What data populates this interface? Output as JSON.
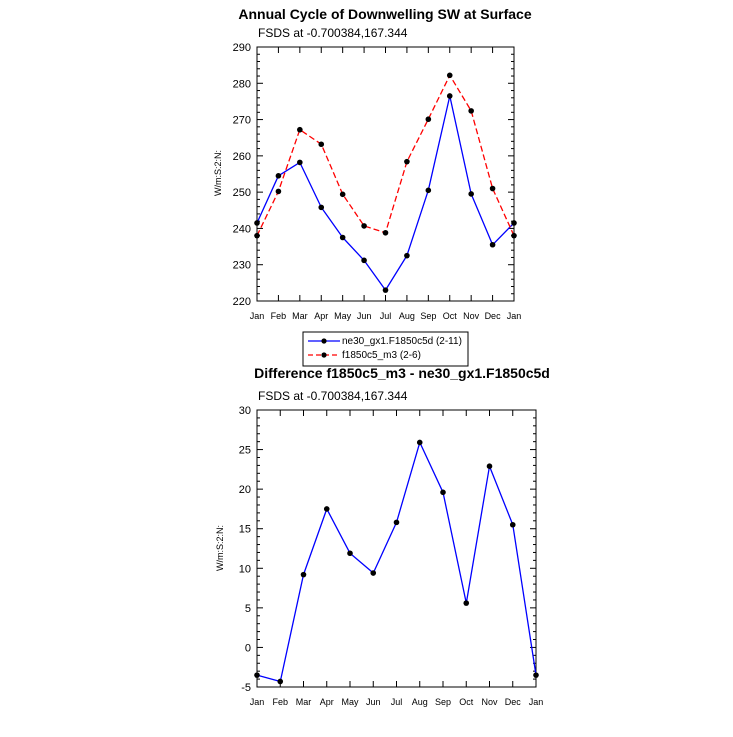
{
  "chart_data": [
    {
      "type": "line",
      "title": "Annual Cycle of Downwelling SW at Surface",
      "subtitle": "FSDS at -0.700384,167.344",
      "xlabel": "",
      "ylabel": "W/m:S:2:N:",
      "categories": [
        "Jan",
        "Feb",
        "Mar",
        "Apr",
        "May",
        "Jun",
        "Jul",
        "Aug",
        "Sep",
        "Oct",
        "Nov",
        "Dec",
        "Jan"
      ],
      "ylim": [
        220,
        290
      ],
      "yticks": [
        220,
        230,
        240,
        250,
        260,
        270,
        280,
        290
      ],
      "legend_position": "below",
      "series": [
        {
          "name": "ne30_gx1.F1850c5d (2-11)",
          "color": "#0000ff",
          "dash": "solid",
          "values": [
            241.5,
            254.5,
            258.2,
            245.8,
            237.5,
            231.2,
            223.0,
            232.5,
            250.5,
            276.5,
            249.5,
            235.5,
            241.5
          ]
        },
        {
          "name": "f1850c5_m3 (2-6)",
          "color": "#ff0000",
          "dash": "dashed",
          "values": [
            238.0,
            250.2,
            267.2,
            263.2,
            249.4,
            240.7,
            238.8,
            258.4,
            270.1,
            282.2,
            272.4,
            251.0,
            238.0
          ]
        }
      ]
    },
    {
      "type": "line",
      "title": "Difference f1850c5_m3 - ne30_gx1.F1850c5d",
      "subtitle": "FSDS at -0.700384,167.344",
      "xlabel": "",
      "ylabel": "W/m:S:2:N:",
      "categories": [
        "Jan",
        "Feb",
        "Mar",
        "Apr",
        "May",
        "Jun",
        "Jul",
        "Aug",
        "Sep",
        "Oct",
        "Nov",
        "Dec",
        "Jan"
      ],
      "ylim": [
        -5,
        30
      ],
      "yticks": [
        -5,
        0,
        5,
        10,
        15,
        20,
        25,
        30
      ],
      "series": [
        {
          "color": "#0000ff",
          "dash": "solid",
          "values": [
            -3.5,
            -4.3,
            9.2,
            17.5,
            11.9,
            9.4,
            15.8,
            25.9,
            19.6,
            5.6,
            22.9,
            15.5,
            -3.5
          ]
        }
      ]
    }
  ]
}
